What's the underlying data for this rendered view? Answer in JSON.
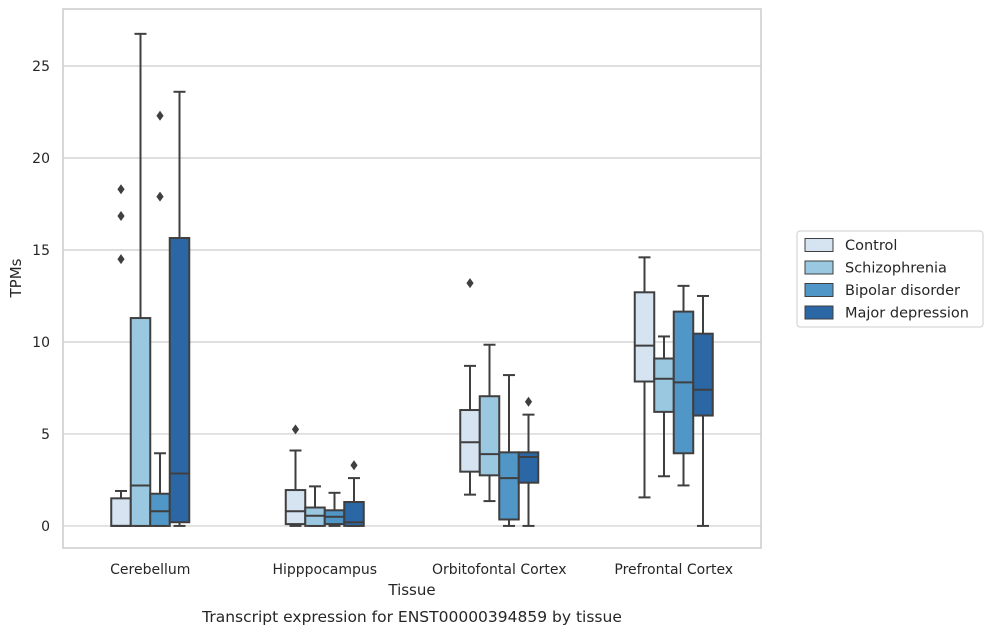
{
  "chart_data": {
    "type": "box",
    "title": "",
    "caption": "Transcript expression for ENST00000394859 by tissue",
    "xlabel": "Tissue",
    "ylabel": "TPMs",
    "ylim": [
      -1.2,
      28.1
    ],
    "yticks": [
      0,
      5,
      10,
      15,
      20,
      25
    ],
    "grid": "horizontal",
    "legend_position": "right",
    "categories": [
      "Cerebellum",
      "Hipppocampus",
      "Orbitofontal Cortex",
      "Prefrontal Cortex"
    ],
    "series": [
      {
        "name": "Control",
        "color": "#d6e4f2",
        "boxes": [
          {
            "whislo": 0,
            "q1": 0,
            "med": 0,
            "q3": 1.5,
            "whishi": 1.9,
            "fliers": [
              14.5,
              16.85,
              18.3
            ]
          },
          {
            "whislo": 0,
            "q1": 0.1,
            "med": 0.8,
            "q3": 1.95,
            "whishi": 4.1,
            "fliers": [
              5.25
            ]
          },
          {
            "whislo": 1.7,
            "q1": 2.95,
            "med": 4.55,
            "q3": 6.3,
            "whishi": 8.7,
            "fliers": [
              13.2
            ]
          },
          {
            "whislo": 1.55,
            "q1": 7.85,
            "med": 9.8,
            "q3": 12.7,
            "whishi": 14.6,
            "fliers": []
          }
        ]
      },
      {
        "name": "Schizophrenia",
        "color": "#9ac8e0",
        "boxes": [
          {
            "whislo": 0,
            "q1": 0,
            "med": 2.2,
            "q3": 11.3,
            "whishi": 26.75,
            "fliers": []
          },
          {
            "whislo": 0,
            "q1": 0,
            "med": 0.55,
            "q3": 1.0,
            "whishi": 2.15,
            "fliers": []
          },
          {
            "whislo": 1.35,
            "q1": 2.75,
            "med": 3.9,
            "q3": 7.05,
            "whishi": 9.85,
            "fliers": []
          },
          {
            "whislo": 2.7,
            "q1": 6.2,
            "med": 8.0,
            "q3": 9.1,
            "whishi": 10.3,
            "fliers": []
          }
        ]
      },
      {
        "name": "Bipolar disorder",
        "color": "#5096c7",
        "boxes": [
          {
            "whislo": 0,
            "q1": 0,
            "med": 0.8,
            "q3": 1.75,
            "whishi": 3.95,
            "fliers": [
              17.9,
              22.3
            ]
          },
          {
            "whislo": 0,
            "q1": 0.1,
            "med": 0.5,
            "q3": 0.85,
            "whishi": 1.8,
            "fliers": []
          },
          {
            "whislo": 0,
            "q1": 0.35,
            "med": 2.6,
            "q3": 4.0,
            "whishi": 8.2,
            "fliers": []
          },
          {
            "whislo": 2.2,
            "q1": 3.95,
            "med": 7.8,
            "q3": 11.65,
            "whishi": 13.05,
            "fliers": []
          }
        ]
      },
      {
        "name": "Major depression",
        "color": "#2b67a4",
        "boxes": [
          {
            "whislo": 0,
            "q1": 0.2,
            "med": 2.85,
            "q3": 15.65,
            "whishi": 23.6,
            "fliers": []
          },
          {
            "whislo": 0,
            "q1": 0,
            "med": 0.2,
            "q3": 1.3,
            "whishi": 2.6,
            "fliers": [
              3.3
            ]
          },
          {
            "whislo": 0,
            "q1": 2.35,
            "med": 3.75,
            "q3": 4.0,
            "whishi": 6.05,
            "fliers": [
              6.75
            ]
          },
          {
            "whislo": 0,
            "q1": 6.0,
            "med": 7.4,
            "q3": 10.45,
            "whishi": 12.5,
            "fliers": []
          }
        ]
      }
    ]
  }
}
